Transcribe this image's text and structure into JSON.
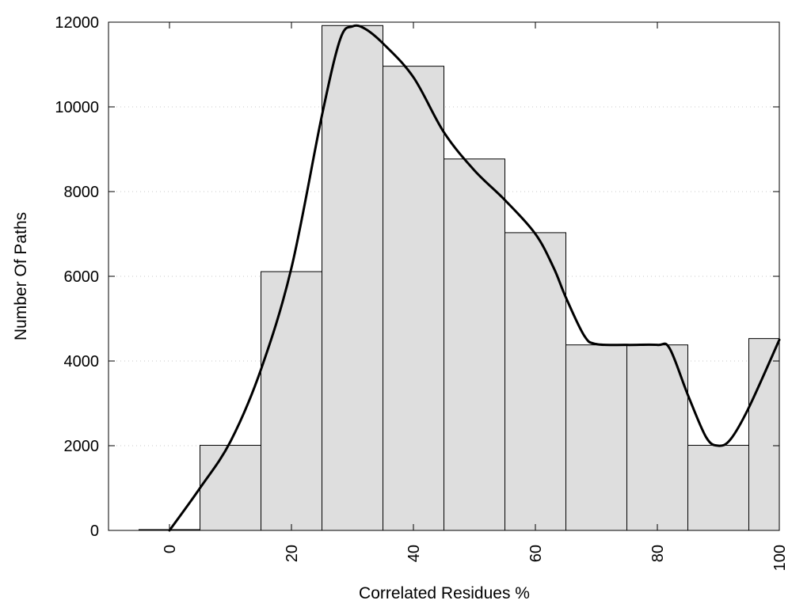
{
  "chart_data": {
    "type": "bar",
    "title": "",
    "xlabel": "Correlated Residues %",
    "ylabel": "Number Of Paths",
    "xlim": [
      -10,
      100
    ],
    "ylim": [
      0,
      12000
    ],
    "bin_width": 10,
    "x": [
      0,
      10,
      20,
      30,
      40,
      50,
      60,
      70,
      80,
      90,
      100
    ],
    "values": [
      20,
      2010,
      6110,
      11920,
      10960,
      8770,
      7030,
      4380,
      4380,
      2010,
      4530
    ],
    "x_ticks": [
      "0",
      "20",
      "40",
      "60",
      "80",
      "100"
    ],
    "x_tick_values": [
      0,
      20,
      40,
      60,
      80,
      100
    ],
    "y_ticks": [
      "0",
      "2000",
      "4000",
      "6000",
      "8000",
      "10000",
      "12000"
    ],
    "y_tick_values": [
      0,
      2000,
      4000,
      6000,
      8000,
      10000,
      12000
    ],
    "grid": "horizontal-dotted",
    "bar_color": "#dedede",
    "curve": {
      "type": "line",
      "smoothed": true,
      "x": [
        0,
        5,
        10,
        15,
        20,
        25,
        28,
        30,
        32,
        35,
        40,
        45,
        50,
        55,
        60,
        63,
        65,
        68,
        70,
        75,
        80,
        82,
        85,
        88,
        90,
        92,
        95,
        100
      ],
      "y": [
        0,
        1000,
        2100,
        3800,
        6200,
        9800,
        11600,
        11900,
        11850,
        11500,
        10700,
        9400,
        8500,
        7800,
        7000,
        6200,
        5500,
        4600,
        4400,
        4380,
        4380,
        4300,
        3200,
        2200,
        2000,
        2150,
        2900,
        4500
      ]
    }
  }
}
